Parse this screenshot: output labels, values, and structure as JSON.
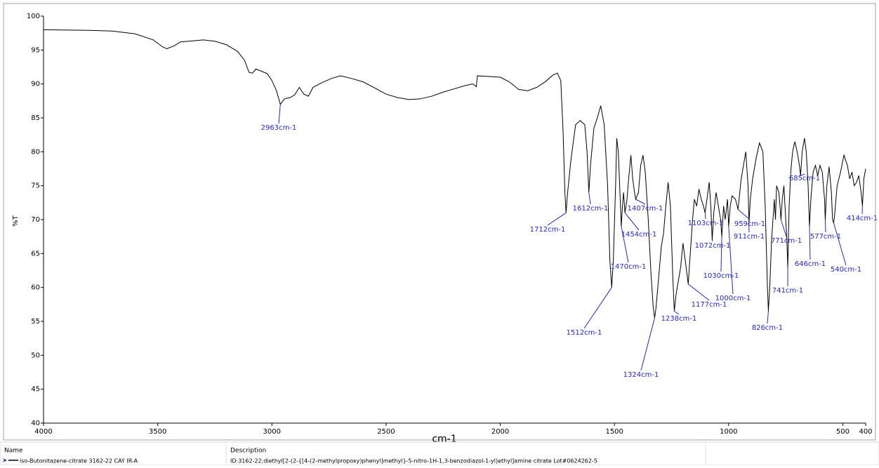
{
  "chart_data": {
    "type": "line",
    "xlabel": "cm-1",
    "ylabel": "%T",
    "xlim": [
      4000,
      400
    ],
    "ylim": [
      40,
      100
    ],
    "xticks": [
      4000,
      3500,
      3000,
      2500,
      2000,
      1500,
      1000,
      500,
      400
    ],
    "yticks": [
      40,
      45,
      50,
      55,
      60,
      65,
      70,
      75,
      80,
      85,
      90,
      95,
      100
    ],
    "x": [
      4000,
      3800,
      3700,
      3600,
      3520,
      3480,
      3460,
      3430,
      3400,
      3300,
      3250,
      3200,
      3150,
      3120,
      3100,
      3085,
      3070,
      3040,
      3020,
      3000,
      2980,
      2963,
      2945,
      2920,
      2900,
      2880,
      2860,
      2840,
      2820,
      2780,
      2740,
      2700,
      2650,
      2600,
      2560,
      2500,
      2450,
      2400,
      2350,
      2300,
      2250,
      2200,
      2150,
      2120,
      2105,
      2100,
      2050,
      2000,
      1960,
      1920,
      1880,
      1840,
      1800,
      1770,
      1750,
      1735,
      1725,
      1717,
      1712,
      1705,
      1690,
      1670,
      1650,
      1630,
      1620,
      1612,
      1605,
      1590,
      1575,
      1560,
      1545,
      1530,
      1520,
      1512,
      1505,
      1495,
      1490,
      1483,
      1476,
      1470,
      1465,
      1460,
      1454,
      1445,
      1438,
      1428,
      1420,
      1412,
      1407,
      1395,
      1385,
      1375,
      1365,
      1352,
      1340,
      1330,
      1324,
      1318,
      1305,
      1295,
      1285,
      1275,
      1265,
      1255,
      1245,
      1238,
      1230,
      1220,
      1210,
      1200,
      1190,
      1177,
      1168,
      1158,
      1150,
      1140,
      1130,
      1120,
      1110,
      1103,
      1095,
      1085,
      1078,
      1072,
      1065,
      1055,
      1045,
      1035,
      1030,
      1022,
      1015,
      1005,
      1000,
      993,
      985,
      970,
      959,
      945,
      925,
      915,
      911,
      905,
      895,
      880,
      865,
      850,
      840,
      830,
      826,
      820,
      812,
      800,
      795,
      790,
      780,
      775,
      771,
      765,
      758,
      750,
      745,
      741,
      735,
      728,
      720,
      710,
      700,
      690,
      685,
      678,
      668,
      660,
      652,
      646,
      640,
      630,
      620,
      610,
      600,
      590,
      580,
      577,
      570,
      560,
      550,
      545,
      540,
      535,
      525,
      510,
      495,
      480,
      470,
      460,
      450,
      440,
      430,
      420,
      414,
      408,
      400
    ],
    "series": [
      {
        "name": "iso-Butonitazene-citrate 3162-22 CAY IR-A",
        "color": "#000000",
        "values": [
          98,
          97.9,
          97.8,
          97.4,
          96.5,
          95.5,
          95.2,
          95.6,
          96.2,
          96.5,
          96.3,
          95.8,
          94.8,
          93.5,
          91.7,
          91.6,
          92.2,
          91.8,
          91.5,
          90.5,
          89,
          87,
          87.8,
          88,
          88.4,
          89.5,
          88.5,
          88.2,
          89.5,
          90.2,
          90.8,
          91.2,
          90.8,
          90.3,
          89.6,
          88.5,
          88,
          87.7,
          87.8,
          88.2,
          88.8,
          89.3,
          89.8,
          90,
          89.6,
          91.2,
          91.1,
          91,
          90.3,
          89.2,
          89,
          89.5,
          90.4,
          91.3,
          91.6,
          90.5,
          83,
          74,
          71,
          74,
          79,
          84,
          84.6,
          84,
          80,
          74,
          78,
          83.5,
          85,
          86.8,
          84,
          75,
          64,
          60,
          64,
          75,
          82,
          80,
          74,
          69,
          72,
          74,
          71,
          73,
          76,
          79.5,
          76,
          74,
          73,
          74,
          78,
          79.5,
          77,
          70,
          62,
          57,
          55.5,
          57,
          62,
          66,
          68,
          72,
          75.5,
          72,
          62,
          56.5,
          59,
          61,
          63,
          66.5,
          64,
          60.5,
          65,
          70,
          73,
          72,
          74.5,
          73,
          72,
          71,
          73,
          75.5,
          72,
          67,
          71,
          74,
          72,
          70,
          67.5,
          72,
          70,
          73,
          69,
          72,
          73.5,
          73,
          71.5,
          76,
          80,
          75,
          69.5,
          73,
          76,
          79,
          81.3,
          80,
          72,
          60,
          56.5,
          60,
          67,
          73,
          70,
          75,
          74,
          72,
          70,
          73,
          75,
          70,
          67,
          63,
          72,
          77,
          80,
          81.5,
          80,
          78,
          76.5,
          80,
          82,
          80,
          75,
          69,
          73,
          77,
          78,
          76.5,
          78,
          77,
          73,
          70,
          75,
          77.8,
          74,
          70,
          69.5,
          71,
          75,
          77,
          79.5,
          78,
          76,
          77,
          75,
          75.5,
          76.5,
          74,
          72,
          76,
          77.5
        ]
      }
    ],
    "annotations": [
      {
        "label": "2963cm-1",
        "x": 2963,
        "y": 87
      },
      {
        "label": "1712cm-1",
        "x": 1712,
        "y": 71
      },
      {
        "label": "1612cm-1",
        "x": 1612,
        "y": 74
      },
      {
        "label": "1512cm-1",
        "x": 1512,
        "y": 60
      },
      {
        "label": "1470cm-1",
        "x": 1470,
        "y": 69
      },
      {
        "label": "1454cm-1",
        "x": 1454,
        "y": 71
      },
      {
        "label": "1407cm-1",
        "x": 1407,
        "y": 73
      },
      {
        "label": "1324cm-1",
        "x": 1324,
        "y": 55.5
      },
      {
        "label": "1238cm-1",
        "x": 1238,
        "y": 56.5
      },
      {
        "label": "1177cm-1",
        "x": 1177,
        "y": 60.5
      },
      {
        "label": "1103cm-1",
        "x": 1103,
        "y": 71
      },
      {
        "label": "1072cm-1",
        "x": 1072,
        "y": 67
      },
      {
        "label": "1030cm-1",
        "x": 1030,
        "y": 67.5
      },
      {
        "label": "1000cm-1",
        "x": 1000,
        "y": 69
      },
      {
        "label": "959cm-1",
        "x": 959,
        "y": 71.5
      },
      {
        "label": "911cm-1",
        "x": 911,
        "y": 69.5
      },
      {
        "label": "826cm-1",
        "x": 826,
        "y": 56.5
      },
      {
        "label": "771cm-1",
        "x": 771,
        "y": 70
      },
      {
        "label": "741cm-1",
        "x": 741,
        "y": 63
      },
      {
        "label": "685cm-1",
        "x": 685,
        "y": 76.5
      },
      {
        "label": "646cm-1",
        "x": 646,
        "y": 69
      },
      {
        "label": "577cm-1",
        "x": 577,
        "y": 70
      },
      {
        "label": "540cm-1",
        "x": 540,
        "y": 69.5
      },
      {
        "label": "414cm-1",
        "x": 414,
        "y": 72
      }
    ]
  },
  "legend_table": {
    "columns": [
      "Name",
      "Description"
    ],
    "description": "ID:3162-22;diethyl[2-(2-{[4-(2-methylpropoxy)phenyl]methyl}-5-nitro-1H-1,3-benzodiazol-1-yl)ethyl]amine citrate Lot#0624262-5"
  }
}
